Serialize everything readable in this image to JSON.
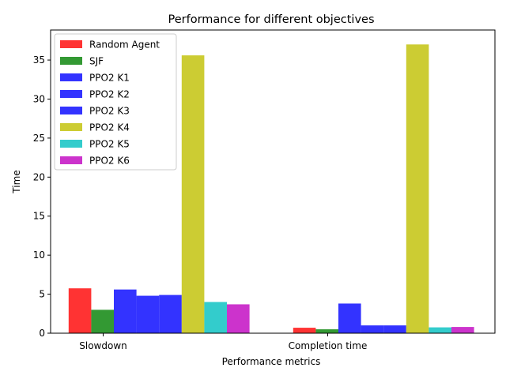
{
  "chart_data": {
    "type": "bar",
    "title": "Performance for different objectives",
    "xlabel": "Performance metrics",
    "ylabel": "Time",
    "categories": [
      "Slowdown",
      "Completion time"
    ],
    "ylim": [
      0,
      38.85
    ],
    "yticks": [
      0,
      5,
      10,
      15,
      20,
      25,
      30,
      35
    ],
    "legend_position": "upper-left",
    "grid": false,
    "series": [
      {
        "name": "Random Agent",
        "color": "#ff0000",
        "values": [
          5.75,
          0.7
        ]
      },
      {
        "name": "SJF",
        "color": "#008000",
        "values": [
          3.0,
          0.5
        ]
      },
      {
        "name": "PPO2 K1",
        "color": "#0000ff",
        "values": [
          5.6,
          3.8
        ]
      },
      {
        "name": "PPO2 K2",
        "color": "#0000ff",
        "values": [
          4.8,
          1.0
        ]
      },
      {
        "name": "PPO2 K3",
        "color": "#0000ff",
        "values": [
          4.9,
          1.0
        ]
      },
      {
        "name": "PPO2 K4",
        "color": "#bfbf00",
        "values": [
          35.6,
          37.0
        ]
      },
      {
        "name": "PPO2 K5",
        "color": "#00bfbf",
        "values": [
          4.0,
          0.75
        ]
      },
      {
        "name": "PPO2 K6",
        "color": "#bf00bf",
        "values": [
          3.7,
          0.8
        ]
      }
    ]
  }
}
